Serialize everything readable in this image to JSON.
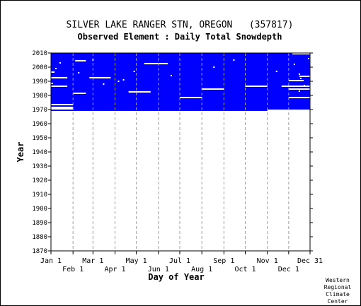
{
  "chart_data": {
    "type": "heatmap",
    "title": "SILVER LAKE RANGER STN, OREGON   (357817)",
    "subtitle": "Observed Element : Daily Total Snowdepth",
    "xlabel": "Day of Year",
    "ylabel": "Year",
    "credit": [
      "Western",
      "Regional",
      "Climate",
      "Center"
    ],
    "x_ticks_top": [
      {
        "label": "Jan 1",
        "day": 1
      },
      {
        "label": "Mar 1",
        "day": 60
      },
      {
        "label": "May 1",
        "day": 121
      },
      {
        "label": "Jul 1",
        "day": 182
      },
      {
        "label": "Sep 1",
        "day": 244
      },
      {
        "label": "Nov 1",
        "day": 305
      },
      {
        "label": "Dec 31",
        "day": 365
      }
    ],
    "x_ticks_bottom": [
      {
        "label": "Feb 1",
        "day": 32
      },
      {
        "label": "Apr 1",
        "day": 91
      },
      {
        "label": "Jun 1",
        "day": 152
      },
      {
        "label": "Aug 1",
        "day": 213
      },
      {
        "label": "Oct 1",
        "day": 274
      },
      {
        "label": "Dec 1",
        "day": 335
      }
    ],
    "y_ticks": [
      1870,
      1880,
      1890,
      1900,
      1910,
      1920,
      1930,
      1940,
      1950,
      1960,
      1970,
      1980,
      1990,
      2000,
      2010
    ],
    "xlim": [
      1,
      365
    ],
    "ylim": [
      1870,
      2010
    ],
    "grid": true,
    "colors": {
      "observed": "#0000ff",
      "missing": "#ffffff",
      "grid": "#a0a0a0"
    },
    "observed_block": {
      "year_start": 1969,
      "year_end": 2010,
      "day_start": 1,
      "day_end": 365
    },
    "missing_segments": [
      {
        "year": 1970.5,
        "day_start": 1,
        "day_end": 32
      },
      {
        "year": 1971.5,
        "day_start": 1,
        "day_end": 32
      },
      {
        "year": 1973.5,
        "day_start": 1,
        "day_end": 32
      },
      {
        "year": 1986.5,
        "day_start": 1,
        "day_end": 24
      },
      {
        "year": 1988.5,
        "day_start": 1,
        "day_end": 4
      },
      {
        "year": 1992.5,
        "day_start": 1,
        "day_end": 24
      },
      {
        "year": 1996.5,
        "day_start": 1,
        "day_end": 6
      },
      {
        "year": 1981.5,
        "day_start": 32,
        "day_end": 50
      },
      {
        "year": 1992.5,
        "day_start": 55,
        "day_end": 85
      },
      {
        "year": 2004.5,
        "day_start": 35,
        "day_end": 50
      },
      {
        "year": 1982.5,
        "day_start": 110,
        "day_end": 141
      },
      {
        "year": 2002.5,
        "day_start": 132,
        "day_end": 165
      },
      {
        "year": 1978.5,
        "day_start": 182,
        "day_end": 213
      },
      {
        "year": 1984.5,
        "day_start": 213,
        "day_end": 244
      },
      {
        "year": 1986.5,
        "day_start": 274,
        "day_end": 305
      },
      {
        "year": 1969.5,
        "day_start": 305,
        "day_end": 365
      },
      {
        "year": 1968.5,
        "day_start": 335,
        "day_end": 365
      },
      {
        "year": 1978.5,
        "day_start": 335,
        "day_end": 365
      },
      {
        "year": 1984.5,
        "day_start": 335,
        "day_end": 365
      },
      {
        "year": 1986.5,
        "day_start": 325,
        "day_end": 365
      },
      {
        "year": 1990.5,
        "day_start": 335,
        "day_end": 356
      },
      {
        "year": 1993.5,
        "day_start": 350,
        "day_end": 365
      },
      {
        "year": 2009.5,
        "day_start": 340,
        "day_end": 365
      }
    ],
    "missing_dots": [
      {
        "year": 1999,
        "day": 8
      },
      {
        "year": 2003,
        "day": 14
      },
      {
        "year": 1996,
        "day": 40
      },
      {
        "year": 2005,
        "day": 60
      },
      {
        "year": 1990,
        "day": 96
      },
      {
        "year": 1997,
        "day": 118
      },
      {
        "year": 1994,
        "day": 170
      },
      {
        "year": 2000,
        "day": 230
      },
      {
        "year": 2005,
        "day": 258
      },
      {
        "year": 1997,
        "day": 318
      },
      {
        "year": 2002,
        "day": 343
      },
      {
        "year": 1995,
        "day": 350
      },
      {
        "year": 1992,
        "day": 352
      },
      {
        "year": 1987,
        "day": 357
      },
      {
        "year": 1983,
        "day": 350
      },
      {
        "year": 2006,
        "day": 363
      },
      {
        "year": 1988,
        "day": 75
      },
      {
        "year": 1991,
        "day": 103
      }
    ]
  }
}
